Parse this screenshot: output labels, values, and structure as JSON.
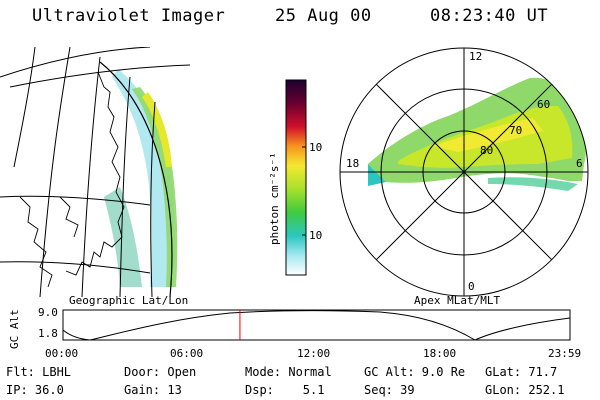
{
  "header": {
    "instrument": "Ultraviolet Imager",
    "date": "25 Aug 00",
    "time": "08:23:40 UT"
  },
  "geo_panel": {
    "label": "Geographic Lat/Lon"
  },
  "polar_panel": {
    "label": "Apex MLat/MLT",
    "mlt_labels": [
      "12",
      "18",
      "6",
      "0"
    ],
    "mlat_labels": [
      "60",
      "70",
      "80"
    ]
  },
  "colorbar": {
    "unit_label": "photon cm⁻²s⁻¹",
    "ticks": [
      "100",
      "10"
    ]
  },
  "timeline": {
    "axis_label": "GC Alt",
    "y_ticks": [
      "9.0",
      "1.8"
    ],
    "x_ticks": [
      "00:00",
      "06:00",
      "12:00",
      "18:00",
      "23:59"
    ],
    "current_time_fraction": 0.349,
    "marker_color": "#ff0000"
  },
  "info": {
    "row1": [
      "Flt: LBHL",
      "Door: Open",
      "Mode: Normal",
      "GC Alt: 9.0 Re",
      "GLat: 71.7"
    ],
    "row2": [
      "IP: 36.0",
      "Gain: 13",
      "Dsp:    5.1",
      "Seq: 39",
      "GLon: 252.1"
    ]
  }
}
